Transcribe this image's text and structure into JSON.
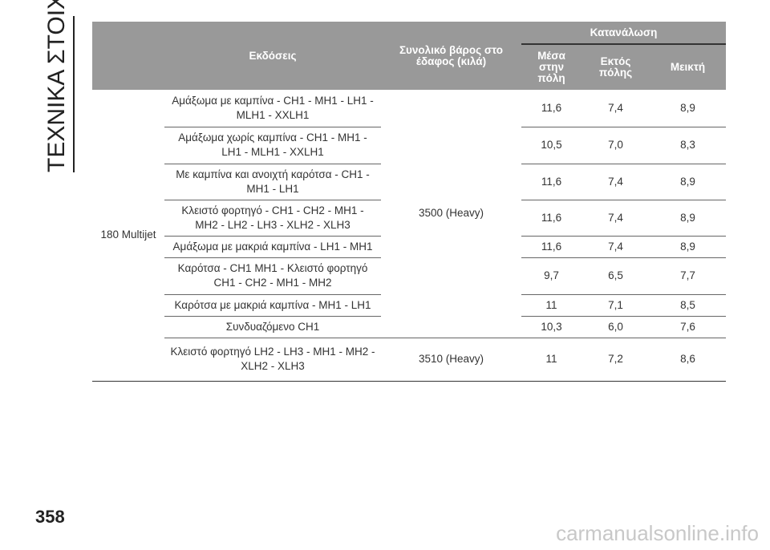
{
  "section_title": "ΤΕΧΝΙΚΑ ΣΤΟΙΧΕΙΑ",
  "page_number": "358",
  "watermark": "carmanualsonline.info",
  "table": {
    "header": {
      "versions": "Εκδόσεις",
      "weight": "Συνολικό βάρος στο έδαφος (κιλά)",
      "consumption": "Κατανάλωση",
      "consumption_columns": [
        "Μέσα στην πόλη",
        "Εκτός πόλης",
        "Μεικτή"
      ]
    },
    "model": "180 Multijet",
    "weights": [
      "3500 (Heavy)",
      "3510 (Heavy)"
    ],
    "rows": [
      [
        "Αμάξωμα με καμπίνα - CH1 - MH1 - LH1 - MLH1 - XXLH1",
        "11,6",
        "7,4",
        "8,9"
      ],
      [
        "Αμάξωμα χωρίς καμπίνα - CH1 - MH1 - LH1 - MLH1 - XXLH1",
        "10,5",
        "7,0",
        "8,3"
      ],
      [
        "Με καμπίνα και ανοιχτή καρότσα - CH1 - MH1 - LH1",
        "11,6",
        "7,4",
        "8,9"
      ],
      [
        "Κλειστό φορτηγό - CH1 - CH2 - MH1 - MH2 - LH2 - LH3 - XLH2 - XLH3",
        "11,6",
        "7,4",
        "8,9"
      ],
      [
        "Αμάξωμα με μακριά καμπίνα - LH1 - MH1",
        "11,6",
        "7,4",
        "8,9"
      ],
      [
        "Καρότσα - CH1 MH1 - Κλειστό φορτηγό CH1 - CH2 - MH1 - MH2",
        "9,7",
        "6,5",
        "7,7"
      ],
      [
        "Καρότσα με μακριά καμπίνα - MH1 - LH1",
        "11",
        "7,1",
        "8,5"
      ],
      [
        "Συνδυαζόμενο CH1",
        "10,3",
        "6,0",
        "7,6"
      ],
      [
        "Κλειστό φορτηγό LH2 - LH3 - MH1 - MH2 - XLH2 - XLH3",
        "11",
        "7,2",
        "8,6"
      ]
    ]
  }
}
